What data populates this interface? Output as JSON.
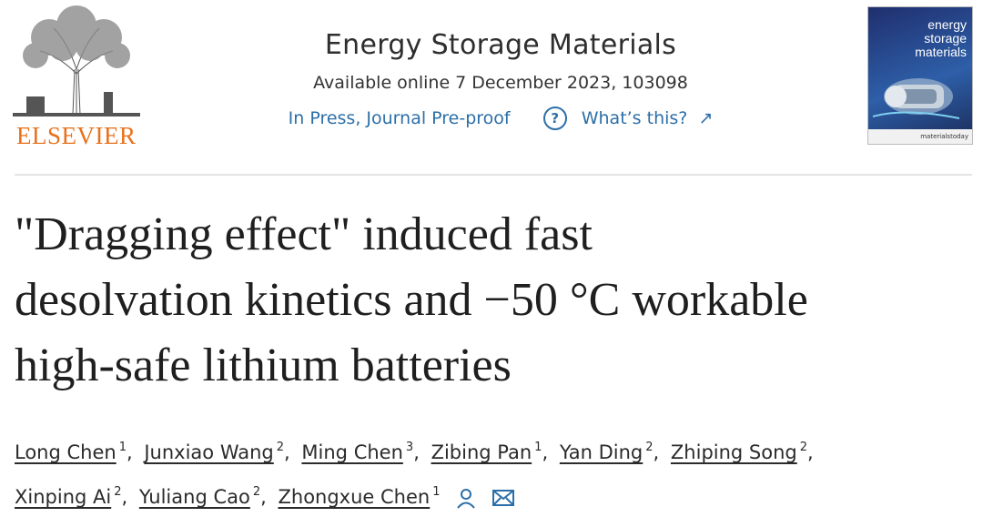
{
  "header": {
    "publisher_logo": "ELSEVIER",
    "journal_title": "Energy Storage Materials",
    "available_online": "Available online 7 December 2023, 103098",
    "status": "In Press, Journal Pre-proof",
    "whats_this": "What’s this?",
    "help_icon_glyph": "?",
    "external_icon_glyph": "↗",
    "cover": {
      "title_line1": "energy",
      "title_line2": "storage",
      "title_line3": "materials",
      "footer": "materialstoday"
    }
  },
  "article": {
    "title_line1": "\"Dragging effect\" induced fast",
    "title_line2": "desolvation kinetics and −50 °C workable",
    "title_line3": "high-safe lithium batteries"
  },
  "authors": [
    {
      "name": "Long Chen",
      "aff": "1"
    },
    {
      "name": "Junxiao Wang",
      "aff": "2"
    },
    {
      "name": "Ming Chen",
      "aff": "3"
    },
    {
      "name": "Zibing Pan",
      "aff": "1"
    },
    {
      "name": "Yan Ding",
      "aff": "2"
    },
    {
      "name": "Zhiping Song",
      "aff": "2"
    },
    {
      "name": "Xinping Ai",
      "aff": "2"
    },
    {
      "name": "Yuliang Cao",
      "aff": "2"
    },
    {
      "name": "Zhongxue Chen",
      "aff": "1"
    }
  ],
  "colors": {
    "elsevier_orange": "#e9711c",
    "link_blue": "#2c6fa8"
  },
  "icons": [
    "help-icon",
    "external-link-icon",
    "person-icon",
    "email-icon"
  ]
}
